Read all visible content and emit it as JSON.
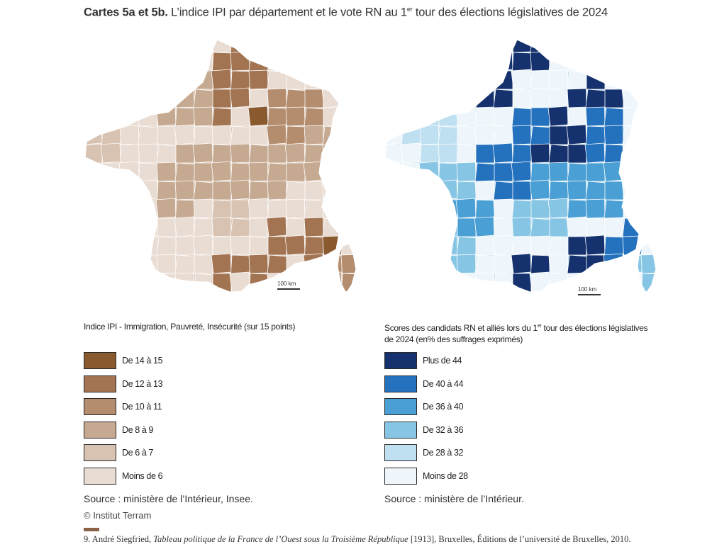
{
  "title": {
    "bold": "Cartes 5a et 5b.",
    "before_sup": " L’indice IPI par département et le vote RN au 1",
    "sup": "er",
    "after_sup": " tour des élections législatives de 2024"
  },
  "map_a": {
    "scale_label": "100 km",
    "legend_title": "Indice IPI - Immigration, Pauvreté, Insécurité (sur 15 points)",
    "legend": [
      {
        "label": "De 14 à 15",
        "color": "#8a5a2f"
      },
      {
        "label": "De 12 à 13",
        "color": "#a27452"
      },
      {
        "label": "De 10 à 11",
        "color": "#b48d6e"
      },
      {
        "label": "De 8 à 9",
        "color": "#c6a991"
      },
      {
        "label": "De 6 à 7",
        "color": "#d8c2b1"
      },
      {
        "label": "Moins de 6",
        "color": "#e9dcd2"
      }
    ],
    "source": "Source : ministère de l’Intérieur, Insee."
  },
  "map_b": {
    "scale_label": "100 km",
    "legend_title_line1": "Scores des candidats RN et alliés lors du 1",
    "legend_title_sup": "er",
    "legend_title_line1_end": " tour des élections législatives",
    "legend_title_line2": "de 2024 (en% des suffrages exprimés)",
    "legend": [
      {
        "label": "Plus de 44",
        "color": "#15326e"
      },
      {
        "label": "De 40 à 44",
        "color": "#2471bd"
      },
      {
        "label": "De 36 à 40",
        "color": "#4a9fd4"
      },
      {
        "label": "De 32 à 36",
        "color": "#86c6e4"
      },
      {
        "label": "De 28 à 32",
        "color": "#bfe0f0"
      },
      {
        "label": "Moins de 28",
        "color": "#eef6fb"
      }
    ],
    "source": "Source : ministère de l’Intérieur."
  },
  "copyright": "© Institut Terram",
  "footnote": {
    "prefix": "9. André Siegfried, ",
    "title": "Tableau politique de la France de l’Ouest sous la Troisième République",
    "suffix": " [1913], Bruxelles, Éditions de l’université de Bruxelles, 2010."
  }
}
